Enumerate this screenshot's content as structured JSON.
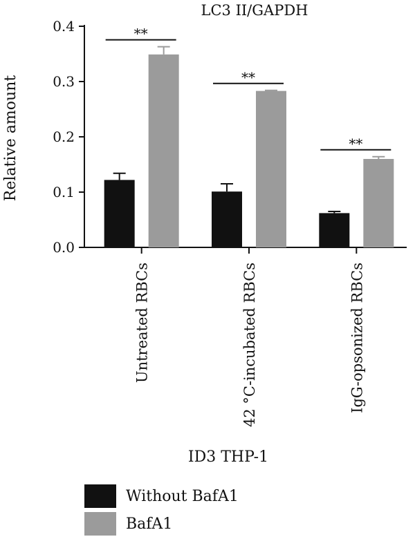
{
  "chart_data": {
    "type": "bar",
    "title": "LC3 II/GAPDH",
    "ylabel": "Relative amount",
    "xlabel": "ID3 THP-1",
    "ylim": [
      0,
      0.4
    ],
    "yticks": [
      "0.0",
      "0.1",
      "0.2",
      "0.3",
      "0.4"
    ],
    "categories": [
      "Untreated RBCs",
      "42 °C-incubated RBCs",
      "IgG-opsonized RBCs"
    ],
    "series": [
      {
        "name": "Without BafA1",
        "color": "#111111",
        "values": [
          0.122,
          0.101,
          0.062
        ],
        "errors": [
          0.012,
          0.014,
          0.003
        ]
      },
      {
        "name": "BafA1",
        "color": "#9b9b9b",
        "values": [
          0.349,
          0.283,
          0.16
        ],
        "errors": [
          0.014,
          0.001,
          0.004
        ]
      }
    ],
    "significance": [
      "**",
      "**",
      "**"
    ],
    "grid": false,
    "legend_position": "bottom-left"
  }
}
